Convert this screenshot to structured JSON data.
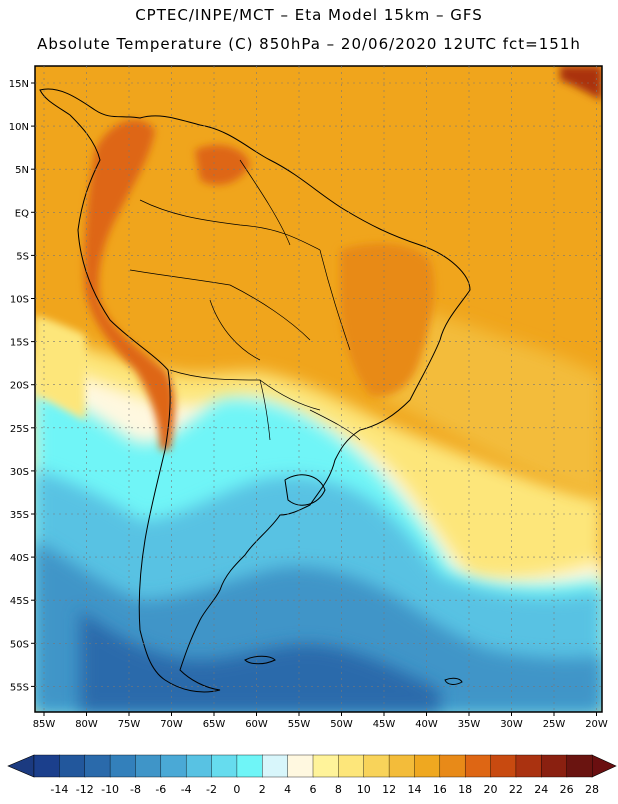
{
  "header": {
    "title_line1": "CPTEC/INPE/MCT –  Eta Model 15km – GFS",
    "title_line2": "Absolute Temperature (C) 850hPa – 20/06/2020 12UTC fct=151h"
  },
  "map": {
    "lat_range": [
      -58,
      16
    ],
    "lon_range": [
      -86,
      -20
    ],
    "lat_ticks": [
      "15N",
      "10N",
      "5N",
      "EQ",
      "5S",
      "10S",
      "15S",
      "20S",
      "25S",
      "30S",
      "35S",
      "40S",
      "45S",
      "50S",
      "55S"
    ],
    "lon_ticks": [
      "85W",
      "80W",
      "75W",
      "70W",
      "65W",
      "60W",
      "55W",
      "50W",
      "45W",
      "40W",
      "35W",
      "30W",
      "25W",
      "20W"
    ]
  },
  "colorbar": {
    "labels": [
      "-14",
      "-12",
      "-10",
      "-8",
      "-6",
      "-4",
      "-2",
      "0",
      "2",
      "4",
      "6",
      "8",
      "10",
      "12",
      "14",
      "16",
      "18",
      "20",
      "22",
      "24",
      "26",
      "28"
    ],
    "colors": [
      "#1b3f8c",
      "#22579c",
      "#2a6aab",
      "#3380bb",
      "#3f95c8",
      "#4aa9d6",
      "#58c2e3",
      "#66dcee",
      "#6ff5f7",
      "#d8f6fb",
      "#fff8e0",
      "#fff39a",
      "#fde67a",
      "#f8d35a",
      "#f3bc3a",
      "#efa820",
      "#e88a18",
      "#de6614",
      "#c84a10",
      "#aa3210",
      "#8a2010",
      "#6a1410"
    ],
    "under_color": "#1b3a80",
    "over_color": "#6a0f10"
  }
}
